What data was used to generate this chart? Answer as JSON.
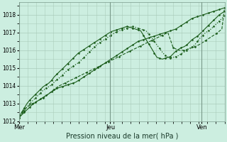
{
  "title": "Pression niveau de la mer( hPa )",
  "background_color": "#cceee0",
  "plot_bg_color": "#cceee0",
  "grid_color": "#aaccbb",
  "line_color": "#1a5c1a",
  "ylim": [
    1012,
    1018.7
  ],
  "yticks": [
    1012,
    1013,
    1014,
    1015,
    1016,
    1017,
    1018
  ],
  "xlabel_day_labels": [
    "Mer",
    "Jeu",
    "Ven"
  ],
  "xlabel_day_positions": [
    0.0,
    0.444,
    0.889
  ],
  "fig_width": 3.2,
  "fig_height": 2.0,
  "series": [
    {
      "x": [
        0.0,
        0.013,
        0.026,
        0.039,
        0.053,
        0.066,
        0.079,
        0.092,
        0.105,
        0.118,
        0.132,
        0.145,
        0.158,
        0.171,
        0.184,
        0.197,
        0.211,
        0.224,
        0.237,
        0.25,
        0.263,
        0.276,
        0.289,
        0.303,
        0.316,
        0.329,
        0.342,
        0.355,
        0.368,
        0.382,
        0.395,
        0.408,
        0.421,
        0.434,
        0.447,
        0.461,
        0.474,
        0.487,
        0.5,
        0.513,
        0.526,
        0.539,
        0.553,
        0.566,
        0.579,
        0.592,
        0.605,
        0.618,
        0.632,
        0.645,
        0.658,
        0.671,
        0.684,
        0.697,
        0.711,
        0.724,
        0.737,
        0.75,
        0.763,
        0.776,
        0.789,
        0.803,
        0.816,
        0.829,
        0.842,
        0.855,
        0.868,
        0.882,
        0.895,
        0.908,
        0.921,
        0.934,
        0.947,
        0.961,
        0.974,
        0.987,
        1.0
      ],
      "y": [
        1012.2,
        1012.35,
        1012.5,
        1012.65,
        1012.8,
        1012.95,
        1013.05,
        1013.15,
        1013.25,
        1013.35,
        1013.45,
        1013.55,
        1013.65,
        1013.75,
        1013.85,
        1013.9,
        1013.95,
        1014.0,
        1014.05,
        1014.1,
        1014.15,
        1014.2,
        1014.3,
        1014.4,
        1014.5,
        1014.6,
        1014.7,
        1014.8,
        1014.9,
        1015.0,
        1015.1,
        1015.2,
        1015.3,
        1015.4,
        1015.5,
        1015.6,
        1015.7,
        1015.8,
        1015.9,
        1016.0,
        1016.1,
        1016.2,
        1016.3,
        1016.4,
        1016.5,
        1016.55,
        1016.6,
        1016.65,
        1016.7,
        1016.75,
        1016.8,
        1016.85,
        1016.9,
        1016.95,
        1017.0,
        1017.05,
        1017.1,
        1017.15,
        1017.2,
        1017.3,
        1017.4,
        1017.5,
        1017.6,
        1017.7,
        1017.8,
        1017.85,
        1017.9,
        1017.95,
        1018.0,
        1018.05,
        1018.1,
        1018.15,
        1018.2,
        1018.25,
        1018.3,
        1018.35,
        1018.4
      ],
      "ls": "-",
      "lw": 0.8
    },
    {
      "x": [
        0.0,
        0.013,
        0.026,
        0.039,
        0.053,
        0.066,
        0.079,
        0.092,
        0.105,
        0.118,
        0.132,
        0.145,
        0.158,
        0.171,
        0.184,
        0.197,
        0.211,
        0.224,
        0.237,
        0.25,
        0.263,
        0.276,
        0.289,
        0.303,
        0.316,
        0.329,
        0.342,
        0.355,
        0.368,
        0.382,
        0.395,
        0.408,
        0.421,
        0.434,
        0.447,
        0.461,
        0.474,
        0.487,
        0.5,
        0.513,
        0.526,
        0.539,
        0.553,
        0.566,
        0.579,
        0.592,
        0.605,
        0.618,
        0.632,
        0.645,
        0.658,
        0.671,
        0.684,
        0.697,
        0.711,
        0.724,
        0.737,
        0.75,
        0.763,
        0.776,
        0.789,
        0.803,
        0.816,
        0.829,
        0.842,
        0.855,
        0.868,
        0.882,
        0.895,
        0.908,
        0.921,
        0.934,
        0.947,
        0.961,
        0.974,
        0.987,
        1.0
      ],
      "y": [
        1012.2,
        1012.4,
        1012.6,
        1012.8,
        1013.0,
        1013.15,
        1013.3,
        1013.45,
        1013.6,
        1013.75,
        1013.85,
        1013.95,
        1014.05,
        1014.2,
        1014.35,
        1014.45,
        1014.6,
        1014.75,
        1014.9,
        1015.0,
        1015.1,
        1015.2,
        1015.3,
        1015.45,
        1015.6,
        1015.75,
        1015.9,
        1016.05,
        1016.2,
        1016.35,
        1016.45,
        1016.55,
        1016.65,
        1016.75,
        1016.85,
        1016.95,
        1017.05,
        1017.1,
        1017.15,
        1017.2,
        1017.25,
        1017.3,
        1017.35,
        1017.3,
        1017.25,
        1017.2,
        1017.15,
        1017.1,
        1016.9,
        1016.7,
        1016.5,
        1016.3,
        1016.1,
        1015.9,
        1015.7,
        1015.6,
        1015.55,
        1015.6,
        1015.65,
        1015.7,
        1015.8,
        1015.9,
        1016.0,
        1016.1,
        1016.2,
        1016.3,
        1016.5,
        1016.7,
        1016.85,
        1017.0,
        1017.1,
        1017.2,
        1017.35,
        1017.5,
        1017.65,
        1017.8,
        1017.95
      ],
      "ls": ":",
      "lw": 0.9
    },
    {
      "x": [
        0.0,
        0.013,
        0.026,
        0.039,
        0.053,
        0.066,
        0.079,
        0.092,
        0.105,
        0.118,
        0.132,
        0.145,
        0.158,
        0.171,
        0.184,
        0.197,
        0.211,
        0.224,
        0.237,
        0.25,
        0.263,
        0.276,
        0.289,
        0.303,
        0.316,
        0.329,
        0.342,
        0.355,
        0.368,
        0.382,
        0.395,
        0.408,
        0.421,
        0.434,
        0.447,
        0.461,
        0.474,
        0.487,
        0.5,
        0.513,
        0.526,
        0.539,
        0.553,
        0.566,
        0.579,
        0.592,
        0.605,
        0.618,
        0.632,
        0.645,
        0.658,
        0.671,
        0.684,
        0.697,
        0.711,
        0.724,
        0.737,
        0.75,
        0.763,
        0.776,
        0.789,
        0.803,
        0.816,
        0.829,
        0.842,
        0.855,
        0.868,
        0.882,
        0.895,
        0.908,
        0.921,
        0.934,
        0.947,
        0.961,
        0.974,
        0.987,
        1.0
      ],
      "y": [
        1012.2,
        1012.5,
        1012.75,
        1013.0,
        1013.2,
        1013.35,
        1013.5,
        1013.65,
        1013.8,
        1013.95,
        1014.05,
        1014.15,
        1014.3,
        1014.5,
        1014.65,
        1014.8,
        1014.95,
        1015.1,
        1015.25,
        1015.4,
        1015.55,
        1015.7,
        1015.85,
        1015.95,
        1016.05,
        1016.15,
        1016.25,
        1016.35,
        1016.45,
        1016.55,
        1016.65,
        1016.75,
        1016.85,
        1016.95,
        1017.05,
        1017.1,
        1017.15,
        1017.2,
        1017.25,
        1017.3,
        1017.35,
        1017.3,
        1017.25,
        1017.2,
        1017.15,
        1017.1,
        1016.85,
        1016.6,
        1016.35,
        1016.1,
        1015.85,
        1015.6,
        1015.55,
        1015.5,
        1015.55,
        1015.6,
        1015.65,
        1015.8,
        1015.95,
        1016.05,
        1016.15,
        1016.2,
        1016.3,
        1016.45,
        1016.6,
        1016.7,
        1016.8,
        1016.95,
        1017.1,
        1017.25,
        1017.4,
        1017.55,
        1017.7,
        1017.85,
        1018.0,
        1018.1,
        1018.2
      ],
      "ls": "-",
      "lw": 0.8
    },
    {
      "x": [
        0.013,
        0.039,
        0.066,
        0.092,
        0.118,
        0.145,
        0.171,
        0.197,
        0.224,
        0.25,
        0.276,
        0.303,
        0.329,
        0.355,
        0.382,
        0.408,
        0.434,
        0.461,
        0.487,
        0.513,
        0.539,
        0.566,
        0.592,
        0.618,
        0.645,
        0.671,
        0.697,
        0.724,
        0.75,
        0.776,
        0.803,
        0.829,
        0.855,
        0.882,
        0.908,
        0.934,
        0.961,
        0.987,
        1.0
      ],
      "y": [
        1012.5,
        1012.8,
        1013.0,
        1013.15,
        1013.3,
        1013.55,
        1013.8,
        1014.0,
        1014.15,
        1014.3,
        1014.45,
        1014.6,
        1014.75,
        1014.9,
        1015.05,
        1015.2,
        1015.35,
        1015.5,
        1015.65,
        1015.8,
        1015.95,
        1016.1,
        1016.25,
        1016.4,
        1016.55,
        1016.7,
        1016.85,
        1017.0,
        1016.15,
        1016.0,
        1016.0,
        1016.1,
        1016.2,
        1016.35,
        1016.55,
        1016.75,
        1016.95,
        1017.2,
        1018.4
      ],
      "ls": "--",
      "lw": 0.8
    }
  ],
  "marker": "D",
  "marker_size": 1.5,
  "marker_every": 2
}
